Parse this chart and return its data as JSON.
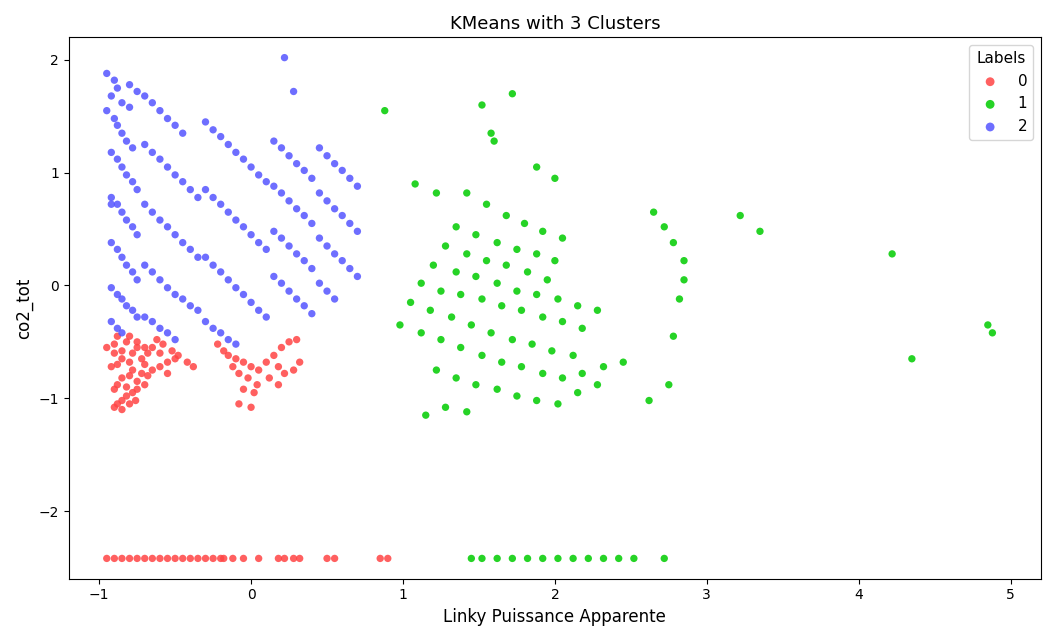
{
  "title": "KMeans with 3 Clusters",
  "xlabel": "Linky Puissance Apparente",
  "ylabel": "co2_tot",
  "xlim": [
    -1.2,
    5.2
  ],
  "ylim": [
    -2.6,
    2.2
  ],
  "legend_title": "Labels",
  "clusters": {
    "0": {
      "color": "#FF4444",
      "label": "0",
      "points": [
        [
          -0.95,
          -0.55
        ],
        [
          -0.9,
          -0.6
        ],
        [
          -0.85,
          -0.65
        ],
        [
          -0.88,
          -0.7
        ],
        [
          -0.92,
          -0.72
        ],
        [
          -0.8,
          -0.68
        ],
        [
          -0.78,
          -0.6
        ],
        [
          -0.75,
          -0.55
        ],
        [
          -0.82,
          -0.5
        ],
        [
          -0.88,
          -0.45
        ],
        [
          -0.9,
          -0.52
        ],
        [
          -0.85,
          -0.58
        ],
        [
          -0.78,
          -0.75
        ],
        [
          -0.72,
          -0.65
        ],
        [
          -0.68,
          -0.6
        ],
        [
          -0.65,
          -0.55
        ],
        [
          -0.7,
          -0.7
        ],
        [
          -0.72,
          -0.78
        ],
        [
          -0.8,
          -0.8
        ],
        [
          -0.85,
          -0.82
        ],
        [
          -0.88,
          -0.88
        ],
        [
          -0.9,
          -0.92
        ],
        [
          -0.82,
          -0.9
        ],
        [
          -0.75,
          -0.85
        ],
        [
          -0.68,
          -0.8
        ],
        [
          -0.6,
          -0.72
        ],
        [
          -0.55,
          -0.68
        ],
        [
          -0.5,
          -0.65
        ],
        [
          -0.6,
          -0.6
        ],
        [
          -0.65,
          -0.75
        ],
        [
          -0.55,
          -0.78
        ],
        [
          -0.7,
          -0.55
        ],
        [
          -0.75,
          -0.5
        ],
        [
          -0.8,
          -0.45
        ],
        [
          -0.62,
          -0.48
        ],
        [
          -0.58,
          -0.52
        ],
        [
          -0.52,
          -0.58
        ],
        [
          -0.48,
          -0.62
        ],
        [
          -0.42,
          -0.68
        ],
        [
          -0.38,
          -0.72
        ],
        [
          -0.88,
          -1.05
        ],
        [
          -0.85,
          -1.02
        ],
        [
          -0.82,
          -0.98
        ],
        [
          -0.78,
          -0.95
        ],
        [
          -0.75,
          -0.92
        ],
        [
          -0.7,
          -0.88
        ],
        [
          -0.9,
          -1.08
        ],
        [
          -0.85,
          -1.1
        ],
        [
          -0.8,
          -1.05
        ],
        [
          -0.76,
          -1.02
        ],
        [
          -0.22,
          -0.52
        ],
        [
          -0.18,
          -0.58
        ],
        [
          -0.15,
          -0.62
        ],
        [
          -0.1,
          -0.65
        ],
        [
          -0.05,
          -0.68
        ],
        [
          0.0,
          -0.72
        ],
        [
          0.05,
          -0.75
        ],
        [
          0.1,
          -0.68
        ],
        [
          0.15,
          -0.62
        ],
        [
          0.2,
          -0.55
        ],
        [
          0.25,
          -0.5
        ],
        [
          0.3,
          -0.48
        ],
        [
          0.18,
          -0.72
        ],
        [
          0.22,
          -0.78
        ],
        [
          0.28,
          -0.75
        ],
        [
          0.32,
          -0.68
        ],
        [
          -0.12,
          -0.72
        ],
        [
          -0.08,
          -0.78
        ],
        [
          -0.02,
          -0.82
        ],
        [
          0.04,
          -0.88
        ],
        [
          0.12,
          -0.82
        ],
        [
          0.18,
          -0.88
        ],
        [
          -0.05,
          -0.92
        ],
        [
          0.02,
          -0.95
        ],
        [
          -0.08,
          -1.05
        ],
        [
          0.0,
          -1.08
        ],
        [
          -0.95,
          -2.42
        ],
        [
          -0.9,
          -2.42
        ],
        [
          -0.85,
          -2.42
        ],
        [
          -0.8,
          -2.42
        ],
        [
          -0.75,
          -2.42
        ],
        [
          -0.7,
          -2.42
        ],
        [
          -0.65,
          -2.42
        ],
        [
          -0.6,
          -2.42
        ],
        [
          -0.55,
          -2.42
        ],
        [
          -0.5,
          -2.42
        ],
        [
          -0.45,
          -2.42
        ],
        [
          -0.4,
          -2.42
        ],
        [
          -0.35,
          -2.42
        ],
        [
          -0.3,
          -2.42
        ],
        [
          -0.25,
          -2.42
        ],
        [
          -0.2,
          -2.42
        ],
        [
          -0.12,
          -2.42
        ],
        [
          -0.05,
          -2.42
        ],
        [
          -0.18,
          -2.42
        ],
        [
          0.05,
          -2.42
        ],
        [
          0.18,
          -2.42
        ],
        [
          0.22,
          -2.42
        ],
        [
          0.28,
          -2.42
        ],
        [
          0.32,
          -2.42
        ],
        [
          0.5,
          -2.42
        ],
        [
          0.55,
          -2.42
        ],
        [
          0.85,
          -2.42
        ],
        [
          0.9,
          -2.42
        ]
      ]
    },
    "1": {
      "color": "#00CC00",
      "label": "1",
      "points": [
        [
          0.88,
          1.55
        ],
        [
          1.08,
          0.9
        ],
        [
          1.22,
          0.82
        ],
        [
          1.52,
          1.6
        ],
        [
          1.58,
          1.35
        ],
        [
          1.6,
          1.28
        ],
        [
          1.72,
          1.7
        ],
        [
          1.88,
          1.05
        ],
        [
          2.0,
          0.95
        ],
        [
          1.42,
          0.82
        ],
        [
          1.55,
          0.72
        ],
        [
          1.68,
          0.62
        ],
        [
          1.8,
          0.55
        ],
        [
          1.92,
          0.48
        ],
        [
          2.05,
          0.42
        ],
        [
          1.35,
          0.52
        ],
        [
          1.48,
          0.45
        ],
        [
          1.62,
          0.38
        ],
        [
          1.75,
          0.32
        ],
        [
          1.88,
          0.28
        ],
        [
          2.0,
          0.22
        ],
        [
          1.28,
          0.35
        ],
        [
          1.42,
          0.28
        ],
        [
          1.55,
          0.22
        ],
        [
          1.68,
          0.18
        ],
        [
          1.82,
          0.12
        ],
        [
          1.95,
          0.05
        ],
        [
          1.2,
          0.18
        ],
        [
          1.35,
          0.12
        ],
        [
          1.48,
          0.08
        ],
        [
          1.62,
          0.02
        ],
        [
          1.75,
          -0.05
        ],
        [
          1.88,
          -0.08
        ],
        [
          2.02,
          -0.12
        ],
        [
          2.15,
          -0.18
        ],
        [
          2.28,
          -0.22
        ],
        [
          1.12,
          0.02
        ],
        [
          1.25,
          -0.05
        ],
        [
          1.38,
          -0.08
        ],
        [
          1.52,
          -0.12
        ],
        [
          1.65,
          -0.18
        ],
        [
          1.78,
          -0.22
        ],
        [
          1.92,
          -0.28
        ],
        [
          2.05,
          -0.32
        ],
        [
          2.18,
          -0.38
        ],
        [
          1.05,
          -0.15
        ],
        [
          1.18,
          -0.22
        ],
        [
          1.32,
          -0.28
        ],
        [
          1.45,
          -0.35
        ],
        [
          1.58,
          -0.42
        ],
        [
          1.72,
          -0.48
        ],
        [
          1.85,
          -0.52
        ],
        [
          1.98,
          -0.58
        ],
        [
          2.12,
          -0.62
        ],
        [
          0.98,
          -0.35
        ],
        [
          1.12,
          -0.42
        ],
        [
          1.25,
          -0.48
        ],
        [
          1.38,
          -0.55
        ],
        [
          1.52,
          -0.62
        ],
        [
          1.65,
          -0.68
        ],
        [
          1.78,
          -0.72
        ],
        [
          1.92,
          -0.78
        ],
        [
          2.05,
          -0.82
        ],
        [
          2.18,
          -0.78
        ],
        [
          2.32,
          -0.72
        ],
        [
          2.45,
          -0.68
        ],
        [
          1.22,
          -0.75
        ],
        [
          1.35,
          -0.82
        ],
        [
          1.48,
          -0.88
        ],
        [
          1.62,
          -0.92
        ],
        [
          1.75,
          -0.98
        ],
        [
          1.88,
          -1.02
        ],
        [
          1.15,
          -1.15
        ],
        [
          1.28,
          -1.08
        ],
        [
          1.42,
          -1.12
        ],
        [
          2.02,
          -1.05
        ],
        [
          2.15,
          -0.95
        ],
        [
          2.28,
          -0.88
        ],
        [
          2.62,
          -1.02
        ],
        [
          2.75,
          -0.88
        ],
        [
          2.78,
          -0.45
        ],
        [
          2.82,
          -0.12
        ],
        [
          2.85,
          0.05
        ],
        [
          2.85,
          0.22
        ],
        [
          2.78,
          0.38
        ],
        [
          2.72,
          0.52
        ],
        [
          2.65,
          0.65
        ],
        [
          3.22,
          0.62
        ],
        [
          3.35,
          0.48
        ],
        [
          4.22,
          0.28
        ],
        [
          4.35,
          -0.65
        ],
        [
          4.85,
          -0.35
        ],
        [
          4.88,
          -0.42
        ],
        [
          1.45,
          -2.42
        ],
        [
          1.52,
          -2.42
        ],
        [
          1.62,
          -2.42
        ],
        [
          1.72,
          -2.42
        ],
        [
          1.82,
          -2.42
        ],
        [
          1.92,
          -2.42
        ],
        [
          2.02,
          -2.42
        ],
        [
          2.12,
          -2.42
        ],
        [
          2.22,
          -2.42
        ],
        [
          2.32,
          -2.42
        ],
        [
          2.42,
          -2.42
        ],
        [
          2.52,
          -2.42
        ],
        [
          2.72,
          -2.42
        ]
      ]
    },
    "2": {
      "color": "#5555FF",
      "label": "2",
      "points": [
        [
          -0.95,
          1.88
        ],
        [
          -0.9,
          1.82
        ],
        [
          -0.88,
          1.75
        ],
        [
          -0.92,
          1.68
        ],
        [
          -0.85,
          1.62
        ],
        [
          -0.8,
          1.58
        ],
        [
          -0.95,
          1.55
        ],
        [
          -0.9,
          1.48
        ],
        [
          -0.88,
          1.42
        ],
        [
          -0.85,
          1.35
        ],
        [
          -0.82,
          1.28
        ],
        [
          -0.78,
          1.22
        ],
        [
          -0.92,
          1.18
        ],
        [
          -0.88,
          1.12
        ],
        [
          -0.85,
          1.05
        ],
        [
          -0.82,
          0.98
        ],
        [
          -0.78,
          0.92
        ],
        [
          -0.75,
          0.85
        ],
        [
          -0.92,
          0.78
        ],
        [
          -0.88,
          0.72
        ],
        [
          -0.85,
          0.65
        ],
        [
          -0.82,
          0.58
        ],
        [
          -0.78,
          0.52
        ],
        [
          -0.75,
          0.45
        ],
        [
          -0.92,
          0.38
        ],
        [
          -0.88,
          0.32
        ],
        [
          -0.85,
          0.25
        ],
        [
          -0.82,
          0.18
        ],
        [
          -0.78,
          0.12
        ],
        [
          -0.75,
          0.05
        ],
        [
          -0.92,
          -0.02
        ],
        [
          -0.88,
          -0.08
        ],
        [
          -0.85,
          -0.12
        ],
        [
          -0.82,
          -0.18
        ],
        [
          -0.78,
          -0.22
        ],
        [
          -0.75,
          -0.28
        ],
        [
          -0.92,
          -0.32
        ],
        [
          -0.88,
          -0.38
        ],
        [
          -0.85,
          -0.42
        ],
        [
          -0.8,
          1.78
        ],
        [
          -0.75,
          1.72
        ],
        [
          -0.7,
          1.68
        ],
        [
          -0.65,
          1.62
        ],
        [
          -0.6,
          1.55
        ],
        [
          -0.55,
          1.48
        ],
        [
          -0.5,
          1.42
        ],
        [
          -0.45,
          1.35
        ],
        [
          -0.7,
          1.25
        ],
        [
          -0.65,
          1.18
        ],
        [
          -0.6,
          1.12
        ],
        [
          -0.55,
          1.05
        ],
        [
          -0.5,
          0.98
        ],
        [
          -0.45,
          0.92
        ],
        [
          -0.4,
          0.85
        ],
        [
          -0.35,
          0.78
        ],
        [
          -0.7,
          0.72
        ],
        [
          -0.65,
          0.65
        ],
        [
          -0.6,
          0.58
        ],
        [
          -0.55,
          0.52
        ],
        [
          -0.5,
          0.45
        ],
        [
          -0.45,
          0.38
        ],
        [
          -0.4,
          0.32
        ],
        [
          -0.35,
          0.25
        ],
        [
          -0.7,
          0.18
        ],
        [
          -0.65,
          0.12
        ],
        [
          -0.6,
          0.05
        ],
        [
          -0.55,
          -0.02
        ],
        [
          -0.5,
          -0.08
        ],
        [
          -0.45,
          -0.12
        ],
        [
          -0.4,
          -0.18
        ],
        [
          -0.35,
          -0.22
        ],
        [
          -0.7,
          -0.28
        ],
        [
          -0.65,
          -0.32
        ],
        [
          -0.6,
          -0.38
        ],
        [
          -0.55,
          -0.42
        ],
        [
          -0.5,
          -0.48
        ],
        [
          -0.3,
          1.45
        ],
        [
          -0.25,
          1.38
        ],
        [
          -0.2,
          1.32
        ],
        [
          -0.15,
          1.25
        ],
        [
          -0.1,
          1.18
        ],
        [
          -0.05,
          1.12
        ],
        [
          0.0,
          1.05
        ],
        [
          0.05,
          0.98
        ],
        [
          0.1,
          0.92
        ],
        [
          -0.3,
          0.85
        ],
        [
          -0.25,
          0.78
        ],
        [
          -0.2,
          0.72
        ],
        [
          -0.15,
          0.65
        ],
        [
          -0.1,
          0.58
        ],
        [
          -0.05,
          0.52
        ],
        [
          0.0,
          0.45
        ],
        [
          0.05,
          0.38
        ],
        [
          0.1,
          0.32
        ],
        [
          -0.3,
          0.25
        ],
        [
          -0.25,
          0.18
        ],
        [
          -0.2,
          0.12
        ],
        [
          -0.15,
          0.05
        ],
        [
          -0.1,
          -0.02
        ],
        [
          -0.05,
          -0.08
        ],
        [
          0.0,
          -0.15
        ],
        [
          0.05,
          -0.22
        ],
        [
          0.1,
          -0.28
        ],
        [
          -0.3,
          -0.32
        ],
        [
          -0.25,
          -0.38
        ],
        [
          -0.2,
          -0.42
        ],
        [
          -0.15,
          -0.48
        ],
        [
          -0.1,
          -0.52
        ],
        [
          0.15,
          1.28
        ],
        [
          0.2,
          1.22
        ],
        [
          0.25,
          1.15
        ],
        [
          0.3,
          1.08
        ],
        [
          0.35,
          1.02
        ],
        [
          0.4,
          0.95
        ],
        [
          0.15,
          0.88
        ],
        [
          0.2,
          0.82
        ],
        [
          0.25,
          0.75
        ],
        [
          0.3,
          0.68
        ],
        [
          0.35,
          0.62
        ],
        [
          0.4,
          0.55
        ],
        [
          0.15,
          0.48
        ],
        [
          0.2,
          0.42
        ],
        [
          0.25,
          0.35
        ],
        [
          0.3,
          0.28
        ],
        [
          0.35,
          0.22
        ],
        [
          0.4,
          0.15
        ],
        [
          0.15,
          0.08
        ],
        [
          0.2,
          0.02
        ],
        [
          0.25,
          -0.05
        ],
        [
          0.3,
          -0.12
        ],
        [
          0.35,
          -0.18
        ],
        [
          0.4,
          -0.25
        ],
        [
          0.45,
          1.22
        ],
        [
          0.5,
          1.15
        ],
        [
          0.55,
          1.08
        ],
        [
          0.6,
          1.02
        ],
        [
          0.65,
          0.95
        ],
        [
          0.7,
          0.88
        ],
        [
          0.45,
          0.82
        ],
        [
          0.5,
          0.75
        ],
        [
          0.55,
          0.68
        ],
        [
          0.6,
          0.62
        ],
        [
          0.65,
          0.55
        ],
        [
          0.7,
          0.48
        ],
        [
          0.45,
          0.42
        ],
        [
          0.5,
          0.35
        ],
        [
          0.55,
          0.28
        ],
        [
          0.6,
          0.22
        ],
        [
          0.65,
          0.15
        ],
        [
          0.7,
          0.08
        ],
        [
          0.45,
          0.02
        ],
        [
          0.5,
          -0.05
        ],
        [
          0.55,
          -0.12
        ],
        [
          0.22,
          2.02
        ],
        [
          0.28,
          1.72
        ],
        [
          -0.92,
          0.72
        ]
      ]
    }
  }
}
